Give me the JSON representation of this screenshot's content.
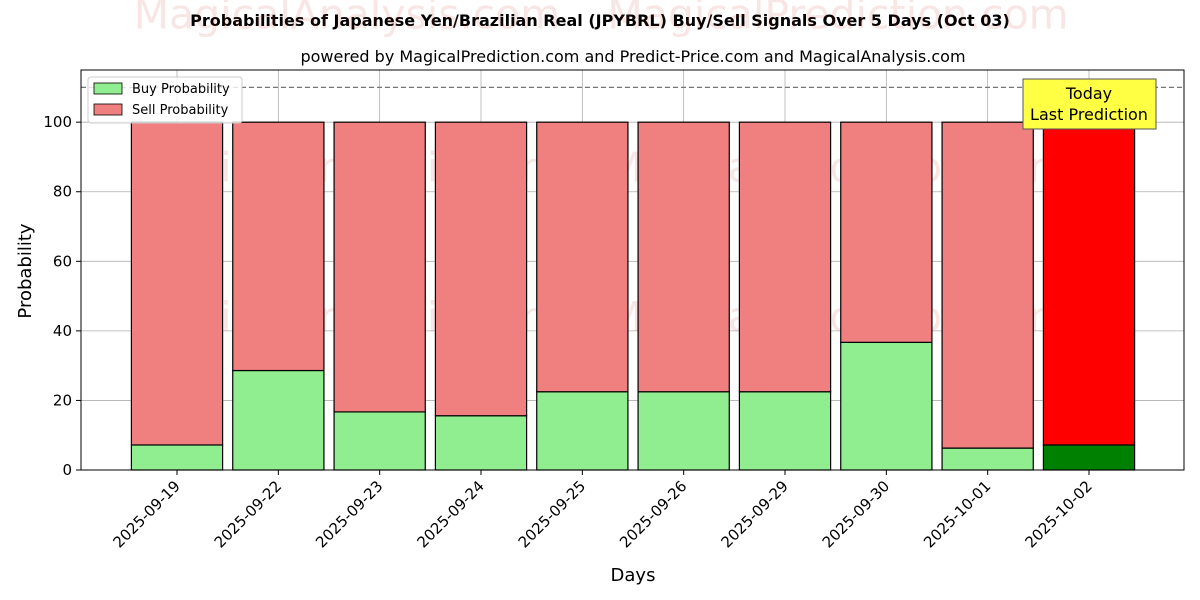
{
  "chart_data": {
    "type": "bar",
    "stacked": true,
    "title": "Probabilities of Japanese Yen/Brazilian Real (JPYBRL) Buy/Sell Signals Over 5 Days (Oct 03)",
    "subtitle": "powered by MagicalPrediction.com and Predict-Price.com and MagicalAnalysis.com",
    "xlabel": "Days",
    "ylabel": "Probability",
    "ylim": [
      0,
      115
    ],
    "yticks": [
      0,
      20,
      40,
      60,
      80,
      100
    ],
    "grid": true,
    "reference_line": 110,
    "legend_placement": "top-left",
    "categories": [
      "2025-09-19",
      "2025-09-22",
      "2025-09-23",
      "2025-09-24",
      "2025-09-25",
      "2025-09-26",
      "2025-09-29",
      "2025-09-30",
      "2025-10-01",
      "2025-10-02"
    ],
    "series": [
      {
        "name": "Buy Probability",
        "values": [
          7.2,
          28.6,
          16.7,
          15.6,
          22.5,
          22.5,
          22.5,
          36.7,
          6.3,
          7.2
        ],
        "color": "#90ee90",
        "highlight_color": "#008000"
      },
      {
        "name": "Sell Probability",
        "values": [
          92.8,
          71.4,
          83.3,
          84.4,
          77.5,
          77.5,
          77.5,
          63.3,
          93.7,
          92.8
        ],
        "color": "#f08080",
        "highlight_color": "#ff0000"
      }
    ],
    "highlight_index": 9,
    "annotation": {
      "lines": [
        "Today",
        "Last Prediction"
      ],
      "color": "#ffff44"
    },
    "watermarks": [
      "MagicalAnalysis.com",
      "MagicalPrediction.com"
    ]
  }
}
